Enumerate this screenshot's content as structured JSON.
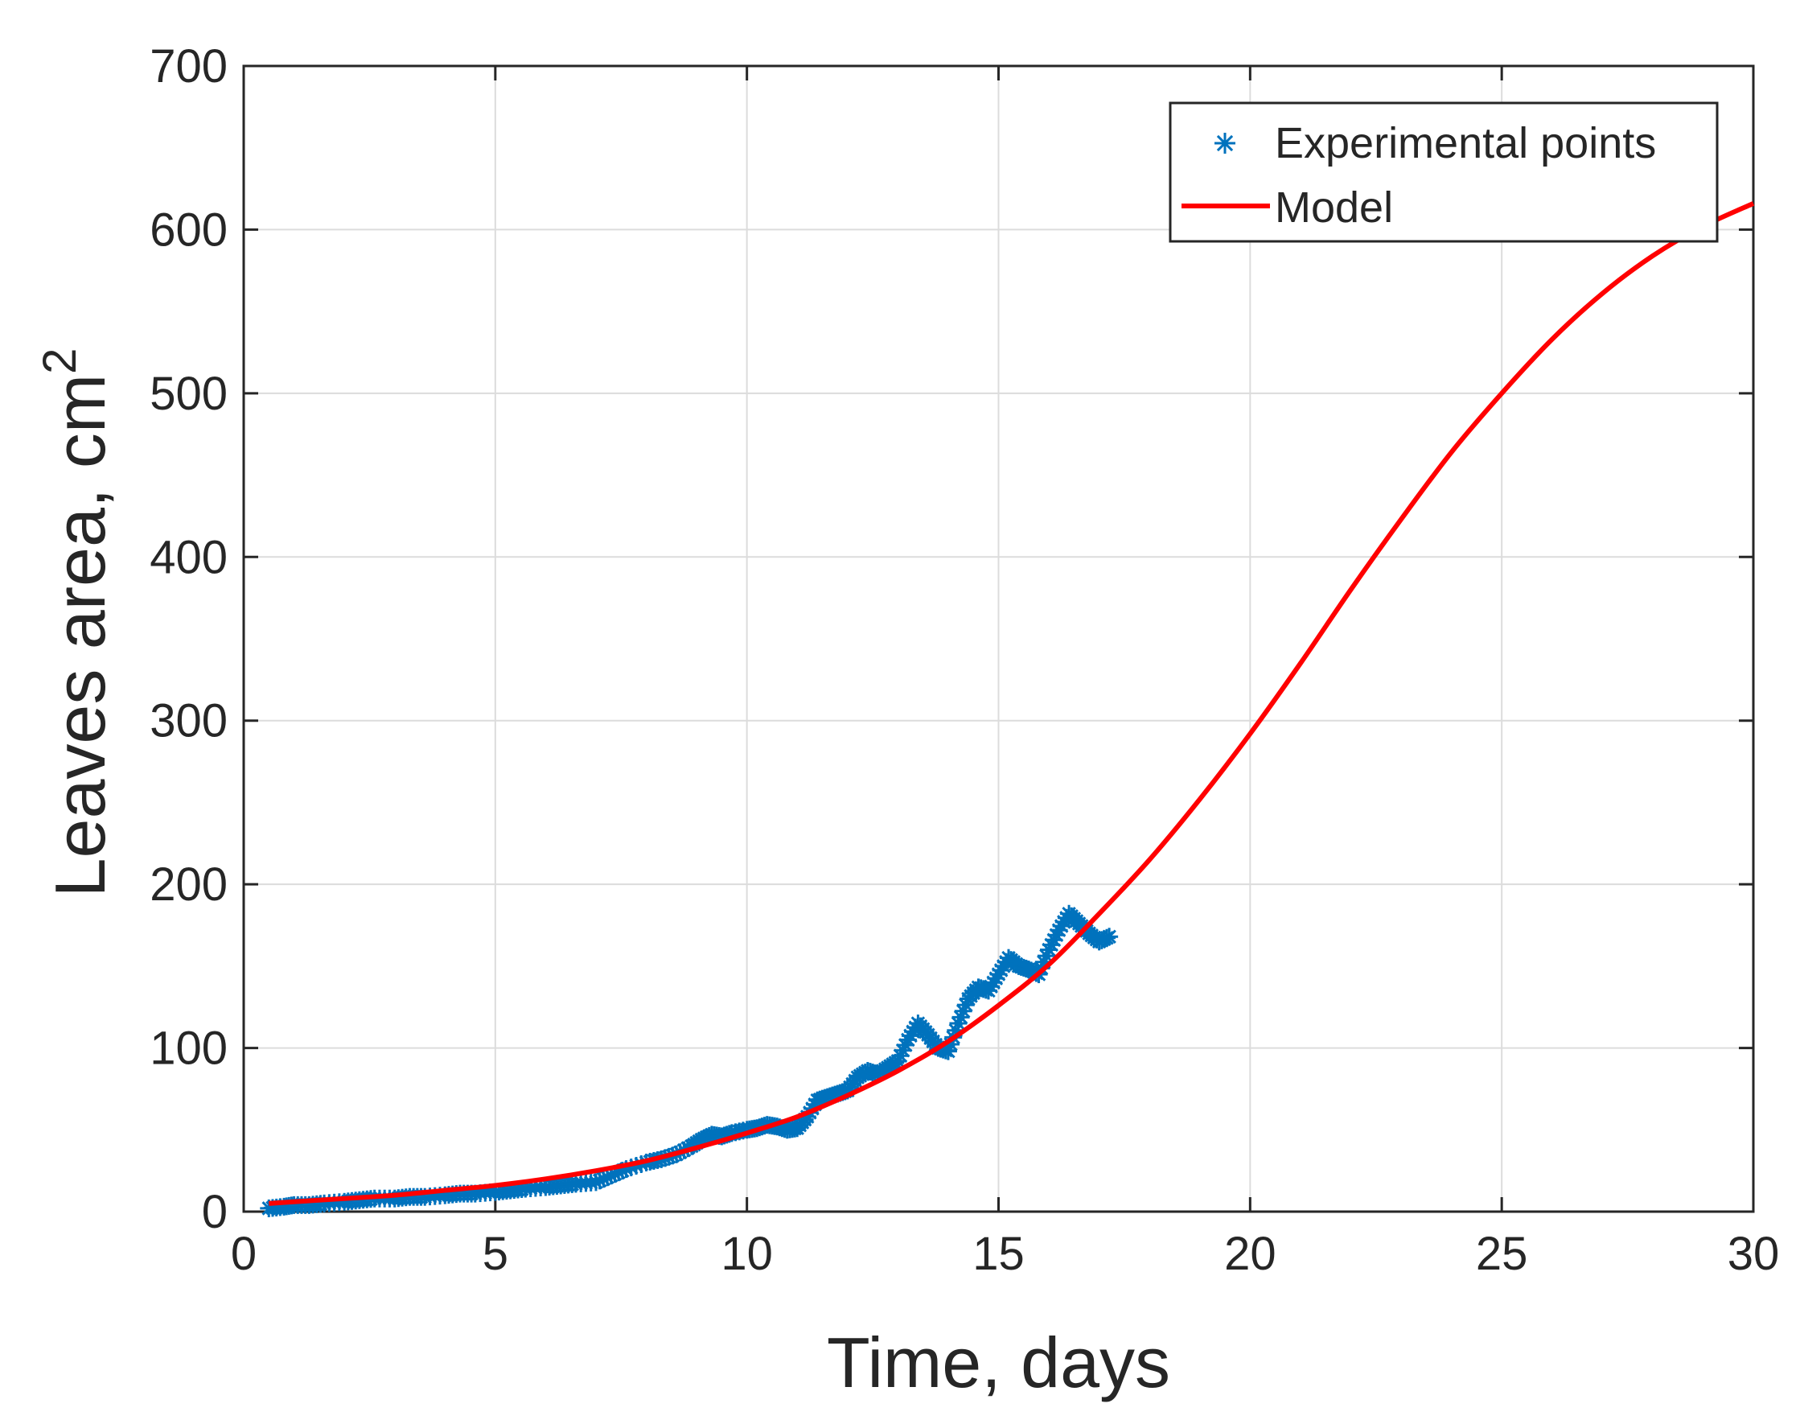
{
  "chart_data": {
    "type": "line",
    "xlabel": "Time, days",
    "ylabel": "Leaves area, cm",
    "ylabel_superscript": "2",
    "xlim": [
      0,
      30
    ],
    "ylim": [
      0,
      700
    ],
    "xticks": [
      0,
      5,
      10,
      15,
      20,
      25,
      30
    ],
    "yticks": [
      0,
      100,
      200,
      300,
      400,
      500,
      600,
      700
    ],
    "xtick_labels": [
      "0",
      "5",
      "10",
      "15",
      "20",
      "25",
      "30"
    ],
    "ytick_labels": [
      "0",
      "100",
      "200",
      "300",
      "400",
      "500",
      "600",
      "700"
    ],
    "grid": true,
    "legend_position": "top-right",
    "series": [
      {
        "name": "Experimental points",
        "style": "markers",
        "marker": "*",
        "color": "#0072BD",
        "x": [
          0.5,
          0.8,
          1.0,
          1.3,
          1.6,
          2.0,
          2.3,
          2.6,
          3.0,
          3.3,
          3.6,
          4.0,
          4.3,
          4.6,
          5.0,
          5.3,
          5.6,
          6.0,
          6.3,
          6.6,
          7.0,
          7.3,
          7.6,
          8.0,
          8.3,
          8.6,
          8.9,
          9.1,
          9.3,
          9.5,
          9.7,
          10.0,
          10.2,
          10.4,
          10.6,
          10.8,
          11.0,
          11.2,
          11.4,
          11.6,
          11.8,
          12.0,
          12.2,
          12.4,
          12.6,
          12.8,
          13.0,
          13.2,
          13.4,
          13.6,
          13.8,
          14.0,
          14.2,
          14.4,
          14.6,
          14.8,
          15.0,
          15.2,
          15.4,
          15.6,
          15.8,
          16.0,
          16.2,
          16.4,
          16.6,
          16.8,
          17.0,
          17.2
        ],
        "y": [
          2,
          3,
          4,
          4,
          5,
          6,
          7,
          8,
          8,
          9,
          9,
          10,
          11,
          11,
          12,
          13,
          14,
          15,
          16,
          17,
          18,
          22,
          26,
          30,
          32,
          35,
          40,
          44,
          47,
          46,
          48,
          50,
          51,
          53,
          52,
          50,
          51,
          58,
          68,
          70,
          72,
          74,
          82,
          86,
          84,
          88,
          92,
          105,
          115,
          108,
          100,
          98,
          115,
          130,
          137,
          135,
          145,
          155,
          150,
          148,
          145,
          160,
          172,
          182,
          176,
          170,
          165,
          168
        ]
      },
      {
        "name": "Model",
        "style": "line",
        "color": "#FF0000",
        "x": [
          0.5,
          1,
          2,
          3,
          4,
          5,
          6,
          7,
          8,
          9,
          10,
          11,
          12,
          13,
          14,
          15,
          16,
          17,
          18,
          19,
          20,
          21,
          22,
          23,
          24,
          25,
          26,
          27,
          28,
          29,
          30
        ],
        "y": [
          5,
          6,
          8,
          10,
          13,
          16,
          20,
          25,
          31,
          39,
          48,
          58,
          71,
          86,
          104,
          126,
          151,
          182,
          215,
          252,
          292,
          335,
          380,
          423,
          464,
          500,
          533,
          561,
          584,
          602,
          616
        ]
      }
    ]
  }
}
